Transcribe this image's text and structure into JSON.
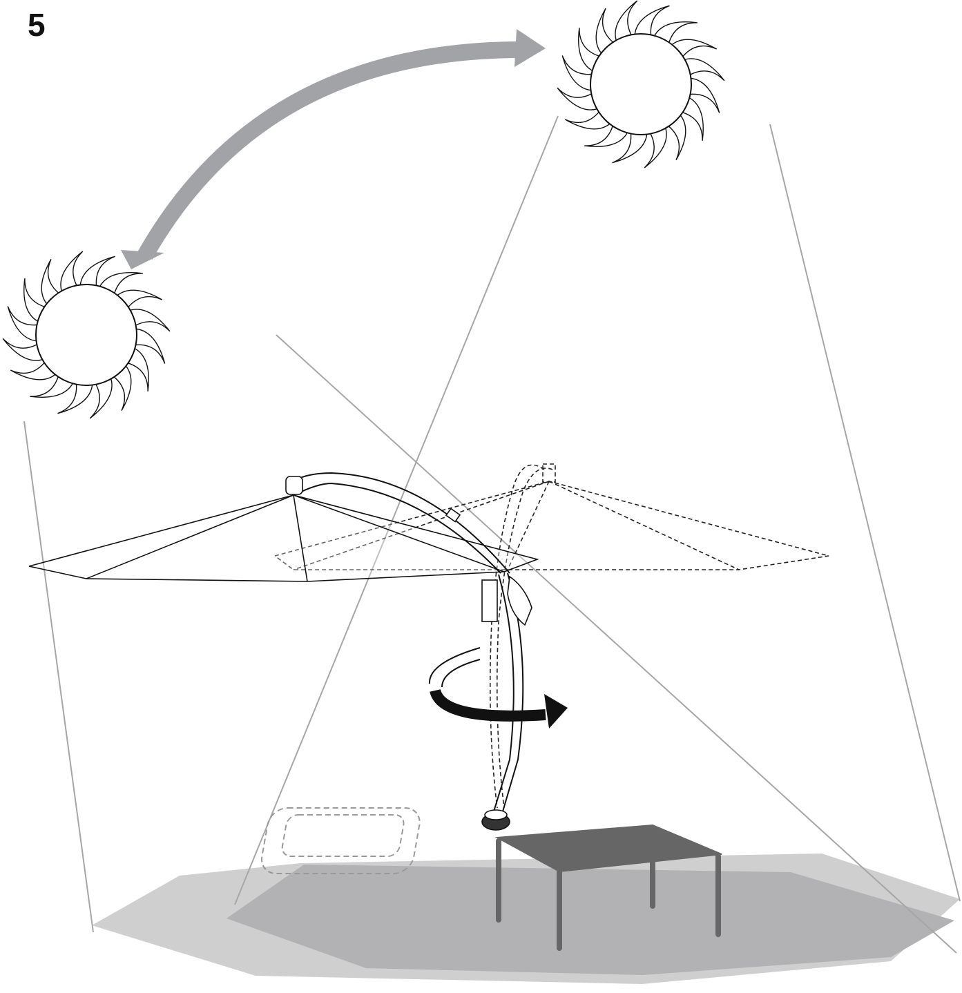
{
  "step": "5"
}
